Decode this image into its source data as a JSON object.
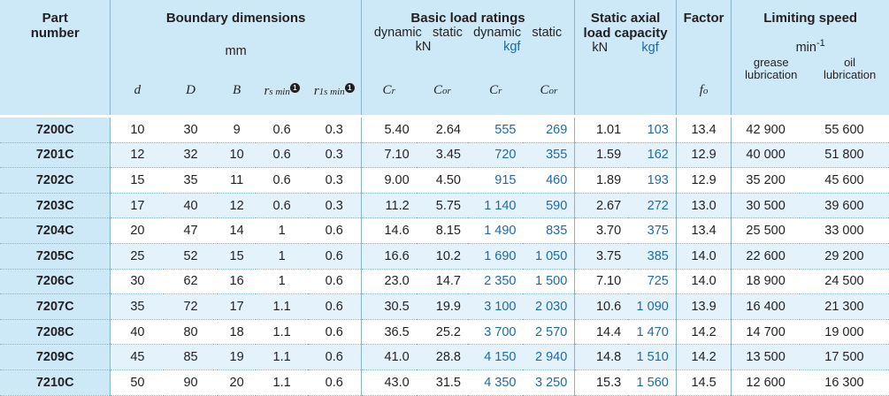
{
  "header": {
    "part_number": "Part\nnumber",
    "boundary_dimensions": "Boundary dimensions",
    "boundary_unit": "mm",
    "basic_load_ratings": "Basic load ratings",
    "dynamic1": "dynamic",
    "static1": "static",
    "dynamic2": "dynamic",
    "static2": "static",
    "kn": "kN",
    "kgf": "kgf",
    "static_axial": "Static axial\nload capacity",
    "axial_kn": "kN",
    "axial_kgf": "kgf",
    "factor": "Factor",
    "limiting_speed": "Limiting speed",
    "speed_unit": "min",
    "speed_unit_exp": "-1",
    "grease": "grease\nlubrication",
    "oil": "oil\nlubrication",
    "sym_d": "d",
    "sym_D": "D",
    "sym_B": "B",
    "sym_rs": "r",
    "sym_rs_sub": "s min",
    "sym_r1s": "r",
    "sym_r1s_sub": "1s min",
    "note_mark": "1",
    "sym_Cr1": "C",
    "sym_Cr1_sub": "r",
    "sym_Cor1": "C",
    "sym_Cor1_sub": "or",
    "sym_Cr2": "C",
    "sym_Cr2_sub": "r",
    "sym_Cor2": "C",
    "sym_Cor2_sub": "or",
    "sym_fo": "f",
    "sym_fo_sub": "o"
  },
  "columns": [
    "part",
    "d",
    "D",
    "B",
    "rs",
    "r1s",
    "cr_kn",
    "cor_kn",
    "cr_kgf",
    "cor_kgf",
    "axial_kn",
    "axial_kgf",
    "fo",
    "grease",
    "oil"
  ],
  "rows": [
    {
      "part": "7200C",
      "d": "10",
      "D": "30",
      "B": "9",
      "rs": "0.6",
      "r1s": "0.3",
      "cr_kn": "5.40",
      "cor_kn": "2.64",
      "cr_kgf": "555",
      "cor_kgf": "269",
      "axial_kn": "1.01",
      "axial_kgf": "103",
      "fo": "13.4",
      "grease": "42 900",
      "oil": "55 600"
    },
    {
      "part": "7201C",
      "d": "12",
      "D": "32",
      "B": "10",
      "rs": "0.6",
      "r1s": "0.3",
      "cr_kn": "7.10",
      "cor_kn": "3.45",
      "cr_kgf": "720",
      "cor_kgf": "355",
      "axial_kn": "1.59",
      "axial_kgf": "162",
      "fo": "12.9",
      "grease": "40 000",
      "oil": "51 800"
    },
    {
      "part": "7202C",
      "d": "15",
      "D": "35",
      "B": "11",
      "rs": "0.6",
      "r1s": "0.3",
      "cr_kn": "9.00",
      "cor_kn": "4.50",
      "cr_kgf": "915",
      "cor_kgf": "460",
      "axial_kn": "1.89",
      "axial_kgf": "193",
      "fo": "12.9",
      "grease": "35 200",
      "oil": "45 600"
    },
    {
      "part": "7203C",
      "d": "17",
      "D": "40",
      "B": "12",
      "rs": "0.6",
      "r1s": "0.3",
      "cr_kn": "11.2",
      "cor_kn": "5.75",
      "cr_kgf": "1 140",
      "cor_kgf": "590",
      "axial_kn": "2.67",
      "axial_kgf": "272",
      "fo": "13.0",
      "grease": "30 500",
      "oil": "39 600"
    },
    {
      "part": "7204C",
      "d": "20",
      "D": "47",
      "B": "14",
      "rs": "1",
      "r1s": "0.6",
      "cr_kn": "14.6",
      "cor_kn": "8.15",
      "cr_kgf": "1 490",
      "cor_kgf": "835",
      "axial_kn": "3.70",
      "axial_kgf": "375",
      "fo": "13.4",
      "grease": "25 500",
      "oil": "33 000"
    },
    {
      "part": "7205C",
      "d": "25",
      "D": "52",
      "B": "15",
      "rs": "1",
      "r1s": "0.6",
      "cr_kn": "16.6",
      "cor_kn": "10.2",
      "cr_kgf": "1 690",
      "cor_kgf": "1 050",
      "axial_kn": "3.75",
      "axial_kgf": "385",
      "fo": "14.0",
      "grease": "22 600",
      "oil": "29 200"
    },
    {
      "part": "7206C",
      "d": "30",
      "D": "62",
      "B": "16",
      "rs": "1",
      "r1s": "0.6",
      "cr_kn": "23.0",
      "cor_kn": "14.7",
      "cr_kgf": "2 350",
      "cor_kgf": "1 500",
      "axial_kn": "7.10",
      "axial_kgf": "725",
      "fo": "14.0",
      "grease": "18 900",
      "oil": "24 500"
    },
    {
      "part": "7207C",
      "d": "35",
      "D": "72",
      "B": "17",
      "rs": "1.1",
      "r1s": "0.6",
      "cr_kn": "30.5",
      "cor_kn": "19.9",
      "cr_kgf": "3 100",
      "cor_kgf": "2 030",
      "axial_kn": "10.6",
      "axial_kgf": "1 090",
      "fo": "13.9",
      "grease": "16 400",
      "oil": "21 300"
    },
    {
      "part": "7208C",
      "d": "40",
      "D": "80",
      "B": "18",
      "rs": "1.1",
      "r1s": "0.6",
      "cr_kn": "36.5",
      "cor_kn": "25.2",
      "cr_kgf": "3 700",
      "cor_kgf": "2 570",
      "axial_kn": "14.4",
      "axial_kgf": "1 470",
      "fo": "14.2",
      "grease": "14 700",
      "oil": "19 000"
    },
    {
      "part": "7209C",
      "d": "45",
      "D": "85",
      "B": "19",
      "rs": "1.1",
      "r1s": "0.6",
      "cr_kn": "41.0",
      "cor_kn": "28.8",
      "cr_kgf": "4 150",
      "cor_kgf": "2 940",
      "axial_kn": "14.8",
      "axial_kgf": "1 510",
      "fo": "14.2",
      "grease": "13 500",
      "oil": "17 500"
    },
    {
      "part": "7210C",
      "d": "50",
      "D": "90",
      "B": "20",
      "rs": "1.1",
      "r1s": "0.6",
      "cr_kn": "43.0",
      "cor_kn": "31.5",
      "cr_kgf": "4 350",
      "cor_kgf": "3 250",
      "axial_kn": "15.3",
      "axial_kgf": "1 560",
      "fo": "14.5",
      "grease": "12 600",
      "oil": "16 300"
    }
  ],
  "colors": {
    "header_bg": "#cde9f8",
    "stripe_bg": "#e4f3fb",
    "kgf_text": "#1f6aa5",
    "text": "#231f20"
  }
}
